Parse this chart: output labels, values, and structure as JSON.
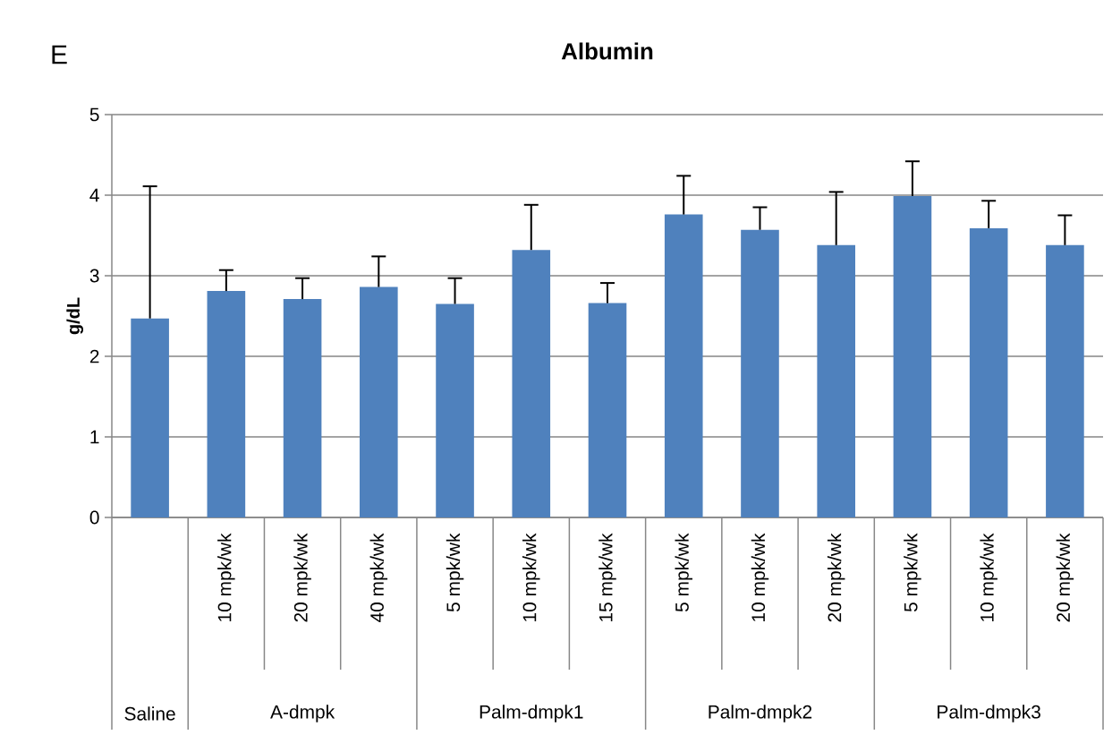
{
  "chart_data": {
    "type": "bar",
    "title": "Albumin",
    "ylabel": "g/dL",
    "categories": [
      null,
      "10 mpk/wk",
      "20 mpk/wk",
      "40 mpk/wk",
      "5 mpk/wk",
      "10 mpk/wk",
      "15 mpk/wk",
      "5 mpk/wk",
      "10 mpk/wk",
      "20 mpk/wk",
      "5 mpk/wk",
      "10 mpk/wk",
      "20 mpk/wk"
    ],
    "values": [
      2.47,
      2.81,
      2.71,
      2.86,
      2.65,
      3.32,
      2.66,
      3.76,
      3.57,
      3.38,
      3.99,
      3.59,
      3.38
    ],
    "errors": [
      [
        2.47,
        4.11
      ],
      [
        2.81,
        3.07
      ],
      [
        2.71,
        2.97
      ],
      [
        2.86,
        3.24
      ],
      [
        2.65,
        2.97
      ],
      [
        3.32,
        3.88
      ],
      [
        2.66,
        2.91
      ],
      [
        3.76,
        4.24
      ],
      [
        3.57,
        3.85
      ],
      [
        3.38,
        4.04
      ],
      [
        3.99,
        4.42
      ],
      [
        3.59,
        3.93
      ],
      [
        3.38,
        3.75
      ]
    ],
    "color": "#4f81bd",
    "ylim": [
      0,
      5
    ],
    "yticks": [
      0,
      1,
      2,
      3,
      4,
      5
    ],
    "grid": "y",
    "annotations": [
      "E",
      "Saline",
      "A-dmpk",
      "Palm-dmpk1",
      "Palm-dmpk2",
      "Palm-dmpk3"
    ]
  }
}
